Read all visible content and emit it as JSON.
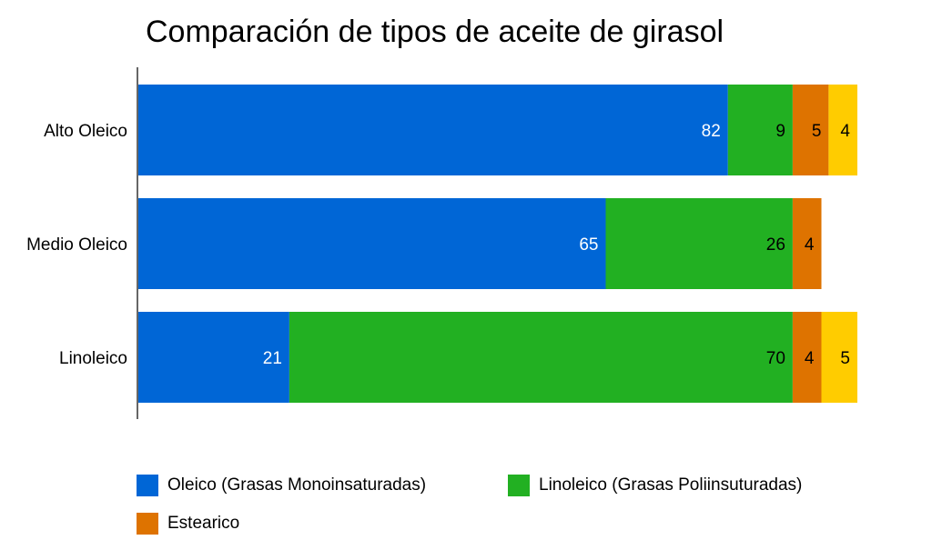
{
  "chart_data": {
    "type": "bar",
    "orientation": "horizontal",
    "stacked": true,
    "title": "Comparación de tipos de aceite de girasol",
    "categories": [
      "Alto Oleico",
      "Medio Oleico",
      "Linoleico"
    ],
    "xlim": [
      0,
      100
    ],
    "grid": false,
    "legend_position": "bottom",
    "series": [
      {
        "name": "Oleico (Grasas Monoinsaturadas)",
        "color": "#0066d6",
        "label_color": "#ffffff",
        "values": [
          82,
          65,
          21
        ]
      },
      {
        "name": "Linoleico (Grasas Poliinsuturadas)",
        "color": "#22b022",
        "label_color": "#000000",
        "values": [
          9,
          26,
          70
        ]
      },
      {
        "name": "Estearico",
        "color": "#de7300",
        "label_color": "#000000",
        "values": [
          5,
          4,
          4
        ]
      },
      {
        "name": "",
        "color": "#ffcc00",
        "label_color": "#000000",
        "values": [
          4,
          0,
          5
        ]
      }
    ]
  }
}
